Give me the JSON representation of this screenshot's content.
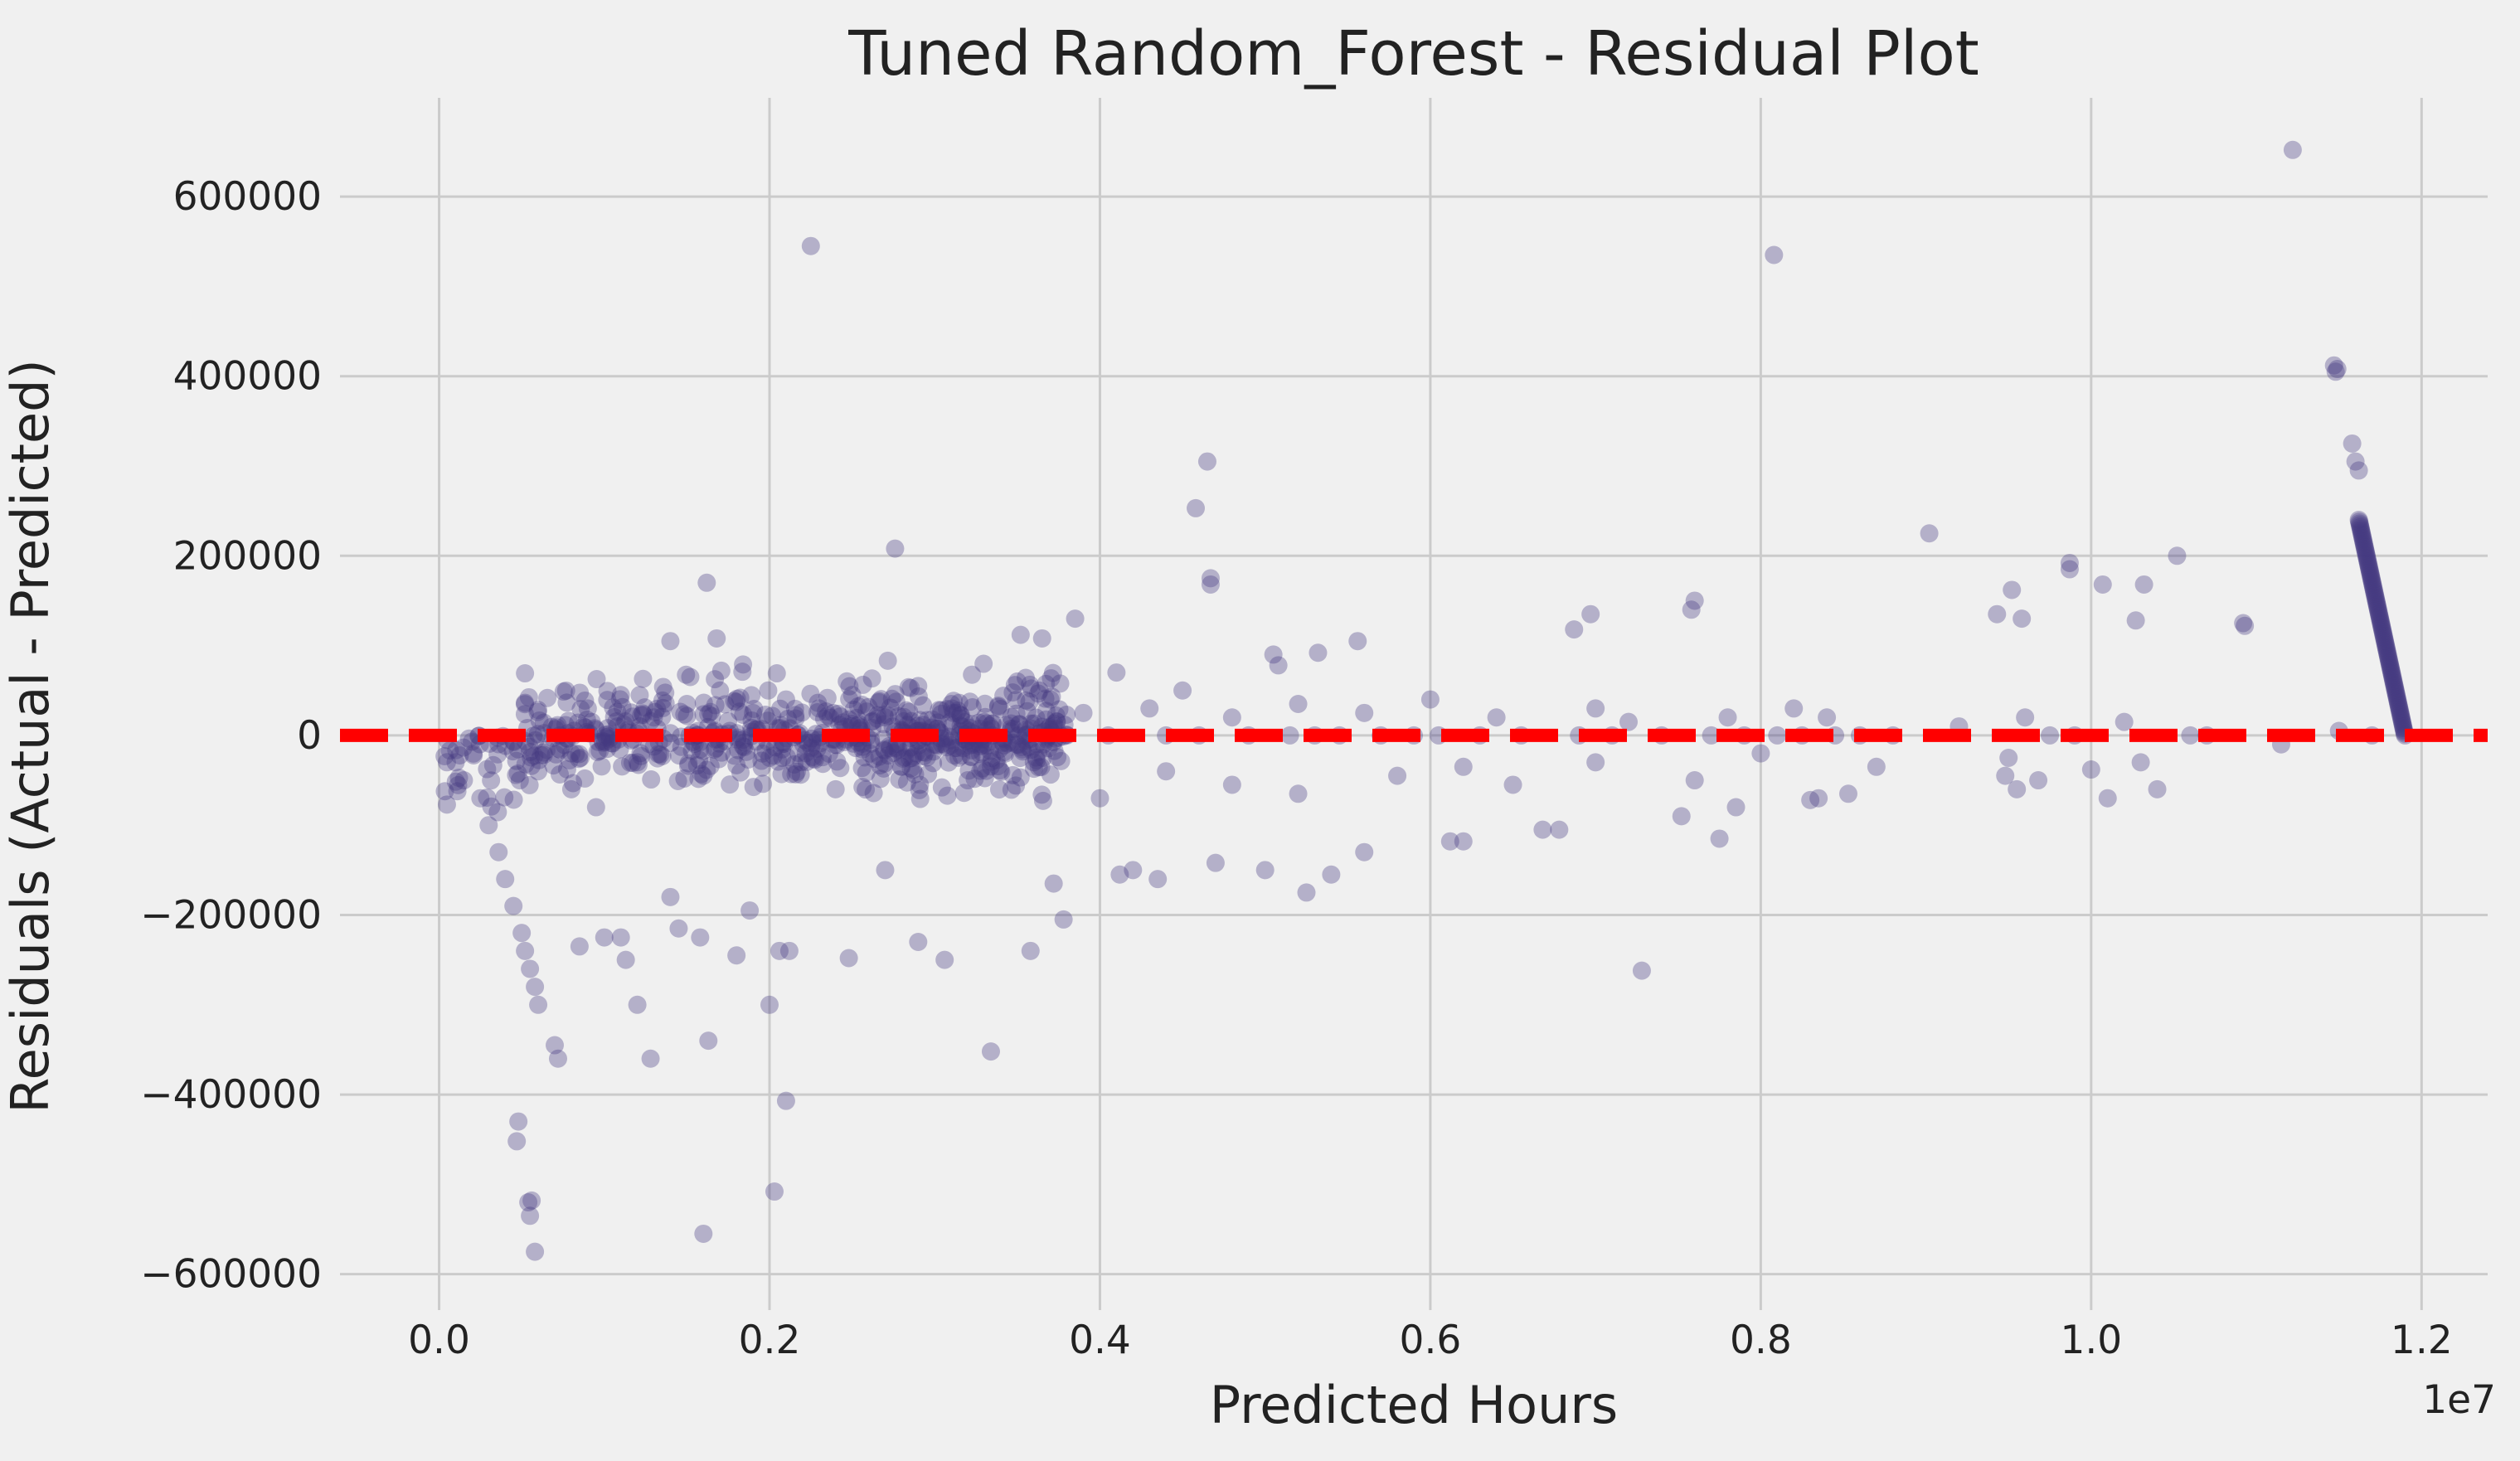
{
  "chart_data": {
    "type": "scatter",
    "title": "Tuned Random_Forest - Residual Plot",
    "xlabel": "Predicted Hours",
    "ylabel": "Residuals (Actual - Predicted)",
    "x_offset_label": "1e7",
    "xlim": [
      -0.06,
      1.24
    ],
    "ylim": [
      -640000,
      710000
    ],
    "x_ticks": [
      0.0,
      0.2,
      0.4,
      0.6,
      0.8,
      1.0,
      1.2
    ],
    "x_tick_labels": [
      "0.0",
      "0.2",
      "0.4",
      "0.6",
      "0.8",
      "1.0",
      "1.2"
    ],
    "y_ticks": [
      -600000,
      -400000,
      -200000,
      0,
      200000,
      400000,
      600000
    ],
    "y_tick_labels": [
      "−600000",
      "−400000",
      "−200000",
      "0",
      "200000",
      "400000",
      "600000"
    ],
    "grid": true,
    "point_color": "#453881",
    "point_alpha": 0.35,
    "reference_line": {
      "y": 0,
      "color": "#ff0000",
      "style": "dashed"
    },
    "points": [
      [
        0.225,
        545000
      ],
      [
        0.808,
        535000
      ],
      [
        1.122,
        652000
      ],
      [
        0.276,
        208000
      ],
      [
        0.458,
        253000
      ],
      [
        0.465,
        305000
      ],
      [
        0.467,
        175000
      ],
      [
        0.467,
        168000
      ],
      [
        0.902,
        225000
      ],
      [
        0.952,
        162000
      ],
      [
        0.943,
        135000
      ],
      [
        0.958,
        130000
      ],
      [
        0.987,
        192000
      ],
      [
        0.987,
        185000
      ],
      [
        1.007,
        168000
      ],
      [
        1.052,
        200000
      ],
      [
        1.147,
        412000
      ],
      [
        1.149,
        408000
      ],
      [
        1.148,
        405000
      ],
      [
        1.158,
        325000
      ],
      [
        1.16,
        305000
      ],
      [
        1.162,
        295000
      ],
      [
        1.032,
        168000
      ],
      [
        1.027,
        128000
      ],
      [
        1.092,
        125000
      ],
      [
        1.093,
        122000
      ],
      [
        0.76,
        150000
      ],
      [
        0.758,
        140000
      ],
      [
        0.697,
        135000
      ],
      [
        0.687,
        118000
      ],
      [
        0.385,
        130000
      ],
      [
        0.352,
        112000
      ],
      [
        0.365,
        108000
      ],
      [
        0.162,
        170000
      ],
      [
        0.14,
        105000
      ],
      [
        0.168,
        108000
      ],
      [
        0.556,
        105000
      ],
      [
        0.532,
        92000
      ],
      [
        0.508,
        78000
      ],
      [
        0.505,
        90000
      ],
      [
        0.036,
        -130000
      ],
      [
        0.04,
        -160000
      ],
      [
        0.045,
        -190000
      ],
      [
        0.05,
        -220000
      ],
      [
        0.052,
        -240000
      ],
      [
        0.055,
        -260000
      ],
      [
        0.058,
        -280000
      ],
      [
        0.06,
        -300000
      ],
      [
        0.07,
        -345000
      ],
      [
        0.072,
        -360000
      ],
      [
        0.085,
        -235000
      ],
      [
        0.1,
        -225000
      ],
      [
        0.048,
        -430000
      ],
      [
        0.047,
        -452000
      ],
      [
        0.054,
        -520000
      ],
      [
        0.056,
        -518000
      ],
      [
        0.055,
        -535000
      ],
      [
        0.058,
        -575000
      ],
      [
        0.163,
        -340000
      ],
      [
        0.16,
        -555000
      ],
      [
        0.203,
        -508000
      ],
      [
        0.21,
        -407000
      ],
      [
        0.2,
        -300000
      ],
      [
        0.206,
        -240000
      ],
      [
        0.212,
        -240000
      ],
      [
        0.248,
        -248000
      ],
      [
        0.27,
        -150000
      ],
      [
        0.29,
        -230000
      ],
      [
        0.306,
        -250000
      ],
      [
        0.334,
        -352000
      ],
      [
        0.358,
        -240000
      ],
      [
        0.372,
        -165000
      ],
      [
        0.378,
        -205000
      ],
      [
        0.128,
        -360000
      ],
      [
        0.12,
        -300000
      ],
      [
        0.113,
        -250000
      ],
      [
        0.11,
        -225000
      ],
      [
        0.145,
        -215000
      ],
      [
        0.14,
        -180000
      ],
      [
        0.158,
        -225000
      ],
      [
        0.18,
        -245000
      ],
      [
        0.188,
        -195000
      ],
      [
        0.668,
        -105000
      ],
      [
        0.678,
        -105000
      ],
      [
        0.728,
        -262000
      ],
      [
        0.752,
        -90000
      ],
      [
        0.775,
        -115000
      ],
      [
        0.785,
        -80000
      ],
      [
        0.612,
        -118000
      ],
      [
        0.62,
        -118000
      ],
      [
        0.56,
        -130000
      ],
      [
        0.54,
        -155000
      ],
      [
        0.525,
        -175000
      ],
      [
        0.5,
        -150000
      ],
      [
        0.47,
        -142000
      ],
      [
        0.435,
        -160000
      ],
      [
        0.42,
        -150000
      ],
      [
        0.412,
        -155000
      ],
      [
        0.83,
        -72000
      ],
      [
        0.835,
        -70000
      ],
      [
        0.853,
        -65000
      ],
      [
        0.948,
        -45000
      ],
      [
        0.955,
        -60000
      ],
      [
        0.968,
        -50000
      ],
      [
        1.0,
        -38000
      ],
      [
        1.01,
        -70000
      ],
      [
        1.03,
        -30000
      ],
      [
        1.04,
        -60000
      ],
      [
        1.115,
        -10000
      ],
      [
        0.06,
        -40000
      ],
      [
        0.08,
        -60000
      ],
      [
        0.095,
        -80000
      ],
      [
        0.03,
        -100000
      ],
      [
        0.025,
        -70000
      ],
      [
        0.015,
        -50000
      ],
      [
        0.01,
        -30000
      ],
      [
        0.09,
        30000
      ],
      [
        0.11,
        45000
      ],
      [
        0.13,
        20000
      ],
      [
        0.15,
        35000
      ],
      [
        0.17,
        50000
      ],
      [
        0.19,
        25000
      ],
      [
        0.21,
        40000
      ],
      [
        0.23,
        30000
      ],
      [
        0.25,
        45000
      ],
      [
        0.27,
        20000
      ],
      [
        0.29,
        55000
      ],
      [
        0.31,
        35000
      ],
      [
        0.33,
        15000
      ],
      [
        0.35,
        60000
      ],
      [
        0.37,
        40000
      ],
      [
        0.39,
        25000
      ],
      [
        0.41,
        70000
      ],
      [
        0.43,
        30000
      ],
      [
        0.45,
        50000
      ],
      [
        0.48,
        20000
      ],
      [
        0.52,
        35000
      ],
      [
        0.56,
        25000
      ],
      [
        0.6,
        40000
      ],
      [
        0.64,
        20000
      ],
      [
        0.7,
        30000
      ],
      [
        0.72,
        15000
      ],
      [
        0.78,
        20000
      ],
      [
        0.82,
        30000
      ],
      [
        0.84,
        20000
      ],
      [
        0.92,
        10000
      ],
      [
        0.96,
        20000
      ],
      [
        1.02,
        15000
      ],
      [
        0.08,
        -20000
      ],
      [
        0.12,
        -30000
      ],
      [
        0.16,
        -45000
      ],
      [
        0.2,
        -25000
      ],
      [
        0.24,
        -60000
      ],
      [
        0.28,
        -35000
      ],
      [
        0.32,
        -50000
      ],
      [
        0.36,
        -30000
      ],
      [
        0.4,
        -70000
      ],
      [
        0.44,
        -40000
      ],
      [
        0.48,
        -55000
      ],
      [
        0.52,
        -65000
      ],
      [
        0.58,
        -45000
      ],
      [
        0.62,
        -35000
      ],
      [
        0.65,
        -55000
      ],
      [
        0.7,
        -30000
      ],
      [
        0.76,
        -50000
      ],
      [
        0.8,
        -20000
      ],
      [
        0.87,
        -35000
      ],
      [
        0.95,
        -25000
      ],
      [
        1.15,
        5000
      ],
      [
        1.17,
        0
      ],
      [
        1.06,
        0
      ],
      [
        1.07,
        0
      ],
      [
        0.99,
        0
      ],
      [
        0.975,
        0
      ],
      [
        0.88,
        0
      ],
      [
        0.86,
        0
      ],
      [
        0.845,
        0
      ],
      [
        0.825,
        0
      ],
      [
        0.81,
        0
      ],
      [
        0.79,
        0
      ],
      [
        0.77,
        0
      ],
      [
        0.74,
        0
      ],
      [
        0.71,
        0
      ],
      [
        0.69,
        0
      ],
      [
        0.655,
        0
      ],
      [
        0.63,
        0
      ],
      [
        0.605,
        0
      ],
      [
        0.59,
        0
      ],
      [
        0.57,
        0
      ],
      [
        0.545,
        0
      ],
      [
        0.53,
        0
      ],
      [
        0.515,
        0
      ],
      [
        0.49,
        0
      ],
      [
        0.46,
        0
      ],
      [
        0.44,
        0
      ],
      [
        0.405,
        0
      ],
      [
        0.38,
        0
      ],
      [
        0.355,
        0
      ],
      [
        0.335,
        0
      ],
      [
        0.315,
        0
      ]
    ],
    "dense_band": {
      "x_range": [
        0.0,
        0.38
      ],
      "residual_spread": 90000,
      "count": 700
    },
    "vertical_curve": {
      "x_range": [
        1.162,
        1.19
      ],
      "y_range": [
        240000,
        0
      ],
      "count": 120
    }
  }
}
